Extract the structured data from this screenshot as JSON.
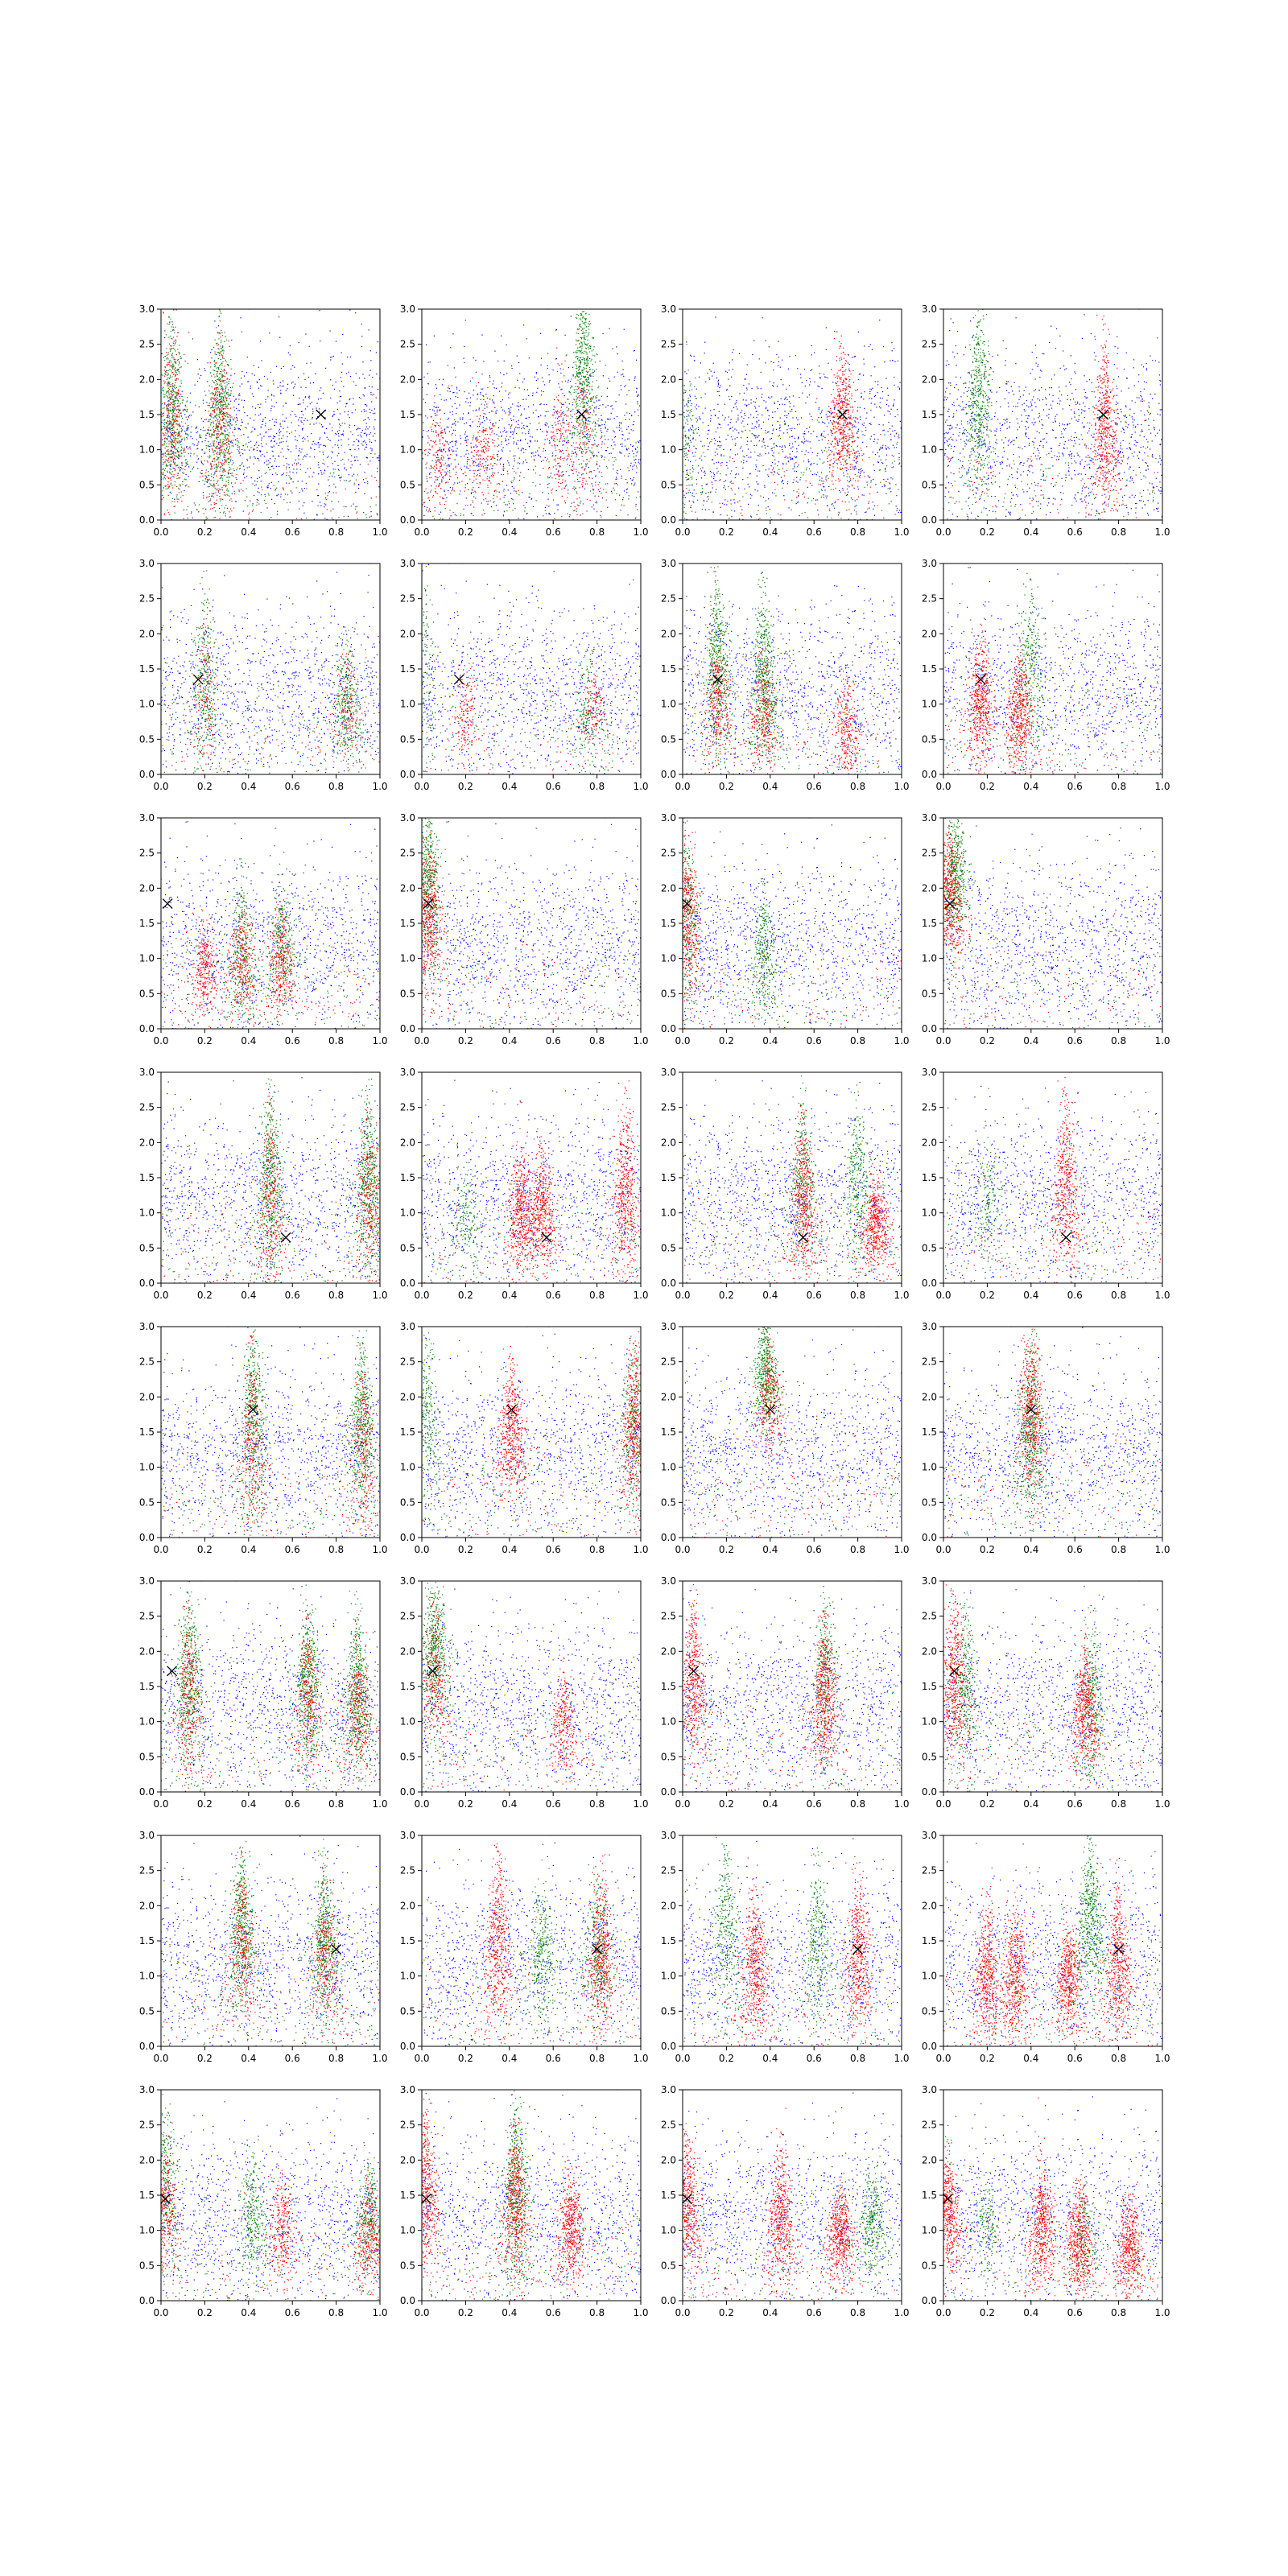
{
  "figure": {
    "rows": 8,
    "cols": 4
  },
  "colors": {
    "primary": "#0000ff",
    "secondary": "#008000",
    "highlight": "#ff0000",
    "marker": "#000000"
  },
  "axes_defaults": {
    "xlim": [
      0,
      1
    ],
    "ylim": [
      0,
      3
    ],
    "xticks": [
      "0.0",
      "0.2",
      "0.4",
      "0.6",
      "0.8",
      "1.0"
    ],
    "yticks": [
      "0.0",
      "0.5",
      "1.0",
      "1.5",
      "2.0",
      "2.5",
      "3.0"
    ],
    "grid": false
  },
  "chart_data": [
    {
      "row": 1,
      "col": 1,
      "type": "scatter",
      "marker": [
        0.73,
        1.5
      ],
      "green": [
        [
          0.05,
          1.5,
          2.6
        ],
        [
          0.27,
          1.4,
          2.5
        ]
      ],
      "red": [
        [
          0.05,
          1.3,
          2.6
        ],
        [
          0.27,
          1.2,
          2.4
        ]
      ],
      "green_level": "high",
      "red_level": "mid"
    },
    {
      "row": 1,
      "col": 2,
      "type": "scatter",
      "marker": [
        0.73,
        1.5
      ],
      "green": [
        [
          0.74,
          2.0,
          3.0
        ]
      ],
      "red": [
        [
          0.07,
          0.9,
          1.6
        ],
        [
          0.29,
          0.9,
          1.5
        ],
        [
          0.63,
          1.1,
          2.0
        ],
        [
          0.74,
          1.1,
          2.2
        ]
      ],
      "green_level": "high",
      "red_level": "low"
    },
    {
      "row": 1,
      "col": 3,
      "type": "scatter",
      "marker": [
        0.73,
        1.5
      ],
      "green": [
        [
          0.02,
          1.0,
          2.0
        ]
      ],
      "red": [
        [
          0.73,
          1.4,
          2.3
        ]
      ],
      "green_level": "low",
      "red_level": "high"
    },
    {
      "row": 1,
      "col": 4,
      "type": "scatter",
      "marker": [
        0.73,
        1.5
      ],
      "green": [
        [
          0.16,
          1.6,
          2.8
        ]
      ],
      "red": [
        [
          0.74,
          1.2,
          2.3
        ]
      ],
      "green_level": "high",
      "red_level": "high"
    },
    {
      "row": 2,
      "col": 1,
      "type": "scatter",
      "marker": [
        0.17,
        1.35
      ],
      "green": [
        [
          0.2,
          1.2,
          2.4
        ],
        [
          0.85,
          1.0,
          1.8
        ]
      ],
      "red": [
        [
          0.2,
          1.0,
          2.0
        ],
        [
          0.85,
          0.9,
          1.6
        ]
      ],
      "green_level": "mid",
      "red_level": "low"
    },
    {
      "row": 2,
      "col": 2,
      "type": "scatter",
      "marker": [
        0.17,
        1.35
      ],
      "green": [
        [
          0.01,
          1.4,
          2.8
        ],
        [
          0.75,
          0.8,
          1.5
        ]
      ],
      "red": [
        [
          0.2,
          0.8,
          1.5
        ],
        [
          0.78,
          0.9,
          1.5
        ]
      ],
      "green_level": "low",
      "red_level": "low"
    },
    {
      "row": 2,
      "col": 3,
      "type": "scatter",
      "marker": [
        0.16,
        1.35
      ],
      "green": [
        [
          0.16,
          1.5,
          2.6
        ],
        [
          0.37,
          1.3,
          2.4
        ]
      ],
      "red": [
        [
          0.16,
          1.0,
          1.8
        ],
        [
          0.37,
          0.8,
          1.5
        ],
        [
          0.75,
          0.6,
          1.3
        ]
      ],
      "green_level": "high",
      "red_level": "mid"
    },
    {
      "row": 2,
      "col": 4,
      "type": "scatter",
      "marker": [
        0.17,
        1.35
      ],
      "green": [
        [
          0.4,
          1.4,
          2.6
        ]
      ],
      "red": [
        [
          0.17,
          1.0,
          1.8
        ],
        [
          0.35,
          0.8,
          1.6
        ]
      ],
      "green_level": "mid",
      "red_level": "high"
    },
    {
      "row": 3,
      "col": 1,
      "type": "scatter",
      "marker": [
        0.03,
        1.78
      ],
      "green": [
        [
          0.37,
          1.0,
          2.0
        ],
        [
          0.55,
          1.2,
          2.0
        ]
      ],
      "red": [
        [
          0.2,
          0.8,
          1.4
        ],
        [
          0.37,
          0.9,
          1.6
        ],
        [
          0.55,
          0.9,
          1.6
        ]
      ],
      "green_level": "mid",
      "red_level": "mid"
    },
    {
      "row": 3,
      "col": 2,
      "type": "scatter",
      "marker": [
        0.03,
        1.78
      ],
      "green": [
        [
          0.03,
          2.0,
          3.0
        ]
      ],
      "red": [
        [
          0.03,
          1.5,
          2.5
        ]
      ],
      "green_level": "high",
      "red_level": "high"
    },
    {
      "row": 3,
      "col": 3,
      "type": "scatter",
      "marker": [
        0.02,
        1.78
      ],
      "green": [
        [
          0.02,
          1.5,
          2.6
        ],
        [
          0.37,
          1.0,
          1.8
        ]
      ],
      "red": [
        [
          0.02,
          1.5,
          2.5
        ]
      ],
      "green_level": "mid",
      "red_level": "high"
    },
    {
      "row": 3,
      "col": 4,
      "type": "scatter",
      "marker": [
        0.03,
        1.78
      ],
      "green": [
        [
          0.05,
          2.2,
          3.0
        ]
      ],
      "red": [
        [
          0.03,
          1.8,
          2.6
        ]
      ],
      "green_level": "high",
      "red_level": "high"
    },
    {
      "row": 4,
      "col": 1,
      "type": "scatter",
      "marker": [
        0.57,
        0.65
      ],
      "green": [
        [
          0.5,
          1.3,
          2.6
        ],
        [
          0.95,
          1.3,
          2.4
        ]
      ],
      "red": [
        [
          0.5,
          1.1,
          2.2
        ],
        [
          0.95,
          1.1,
          2.2
        ]
      ],
      "green_level": "high",
      "red_level": "mid"
    },
    {
      "row": 4,
      "col": 2,
      "type": "scatter",
      "marker": [
        0.57,
        0.65
      ],
      "green": [
        [
          0.2,
          0.9,
          1.6
        ]
      ],
      "red": [
        [
          0.45,
          1.0,
          1.8
        ],
        [
          0.55,
          1.0,
          1.8
        ],
        [
          0.93,
          1.2,
          2.3
        ]
      ],
      "green_level": "low",
      "red_level": "high"
    },
    {
      "row": 4,
      "col": 3,
      "type": "scatter",
      "marker": [
        0.55,
        0.65
      ],
      "green": [
        [
          0.55,
          1.4,
          2.4
        ],
        [
          0.8,
          1.4,
          2.4
        ]
      ],
      "red": [
        [
          0.55,
          1.1,
          2.1
        ],
        [
          0.88,
          0.8,
          1.4
        ]
      ],
      "green_level": "mid",
      "red_level": "high"
    },
    {
      "row": 4,
      "col": 4,
      "type": "scatter",
      "marker": [
        0.56,
        0.65
      ],
      "green": [
        [
          0.2,
          1.2,
          2.0
        ]
      ],
      "red": [
        [
          0.56,
          1.3,
          2.5
        ]
      ],
      "green_level": "low",
      "red_level": "high"
    },
    {
      "row": 5,
      "col": 1,
      "type": "scatter",
      "marker": [
        0.42,
        1.82
      ],
      "green": [
        [
          0.42,
          1.6,
          2.9
        ],
        [
          0.92,
          1.5,
          2.6
        ]
      ],
      "red": [
        [
          0.42,
          1.3,
          2.4
        ],
        [
          0.92,
          1.2,
          2.4
        ]
      ],
      "green_level": "high",
      "red_level": "mid"
    },
    {
      "row": 5,
      "col": 2,
      "type": "scatter",
      "marker": [
        0.41,
        1.82
      ],
      "green": [
        [
          0.02,
          1.7,
          2.9
        ],
        [
          0.97,
          1.6,
          2.6
        ]
      ],
      "red": [
        [
          0.41,
          1.5,
          2.4
        ],
        [
          0.97,
          1.5,
          2.6
        ]
      ],
      "green_level": "mid",
      "red_level": "high"
    },
    {
      "row": 5,
      "col": 3,
      "type": "scatter",
      "marker": [
        0.4,
        1.82
      ],
      "green": [
        [
          0.38,
          2.3,
          3.0
        ]
      ],
      "red": [
        [
          0.4,
          1.9,
          2.6
        ]
      ],
      "green_level": "high",
      "red_level": "mid"
    },
    {
      "row": 5,
      "col": 4,
      "type": "scatter",
      "marker": [
        0.4,
        1.82
      ],
      "green": [
        [
          0.4,
          1.4,
          2.5
        ]
      ],
      "red": [
        [
          0.4,
          1.8,
          2.8
        ]
      ],
      "green_level": "high",
      "red_level": "high"
    },
    {
      "row": 6,
      "col": 1,
      "type": "scatter",
      "marker": [
        0.05,
        1.72
      ],
      "green": [
        [
          0.13,
          1.5,
          2.6
        ],
        [
          0.67,
          1.5,
          2.5
        ],
        [
          0.9,
          1.3,
          2.3
        ]
      ],
      "red": [
        [
          0.13,
          1.3,
          2.3
        ],
        [
          0.67,
          1.3,
          2.2
        ],
        [
          0.9,
          1.1,
          2.0
        ]
      ],
      "green_level": "high",
      "red_level": "mid"
    },
    {
      "row": 6,
      "col": 2,
      "type": "scatter",
      "marker": [
        0.05,
        1.72
      ],
      "green": [
        [
          0.06,
          2.0,
          2.9
        ]
      ],
      "red": [
        [
          0.06,
          1.6,
          2.5
        ],
        [
          0.65,
          0.9,
          1.6
        ]
      ],
      "green_level": "high",
      "red_level": "mid"
    },
    {
      "row": 6,
      "col": 3,
      "type": "scatter",
      "marker": [
        0.05,
        1.72
      ],
      "green": [
        [
          0.65,
          1.6,
          2.6
        ]
      ],
      "red": [
        [
          0.05,
          1.5,
          2.5
        ],
        [
          0.65,
          1.3,
          2.2
        ]
      ],
      "green_level": "mid",
      "red_level": "high"
    },
    {
      "row": 6,
      "col": 4,
      "type": "scatter",
      "marker": [
        0.05,
        1.72
      ],
      "green": [
        [
          0.1,
          1.4,
          2.5
        ],
        [
          0.68,
          1.3,
          2.4
        ]
      ],
      "red": [
        [
          0.05,
          1.5,
          2.6
        ],
        [
          0.65,
          1.1,
          1.9
        ]
      ],
      "green_level": "mid",
      "red_level": "high"
    },
    {
      "row": 7,
      "col": 1,
      "type": "scatter",
      "marker": [
        0.8,
        1.38
      ],
      "green": [
        [
          0.37,
          1.6,
          2.6
        ],
        [
          0.75,
          1.4,
          2.4
        ]
      ],
      "red": [
        [
          0.37,
          1.4,
          2.4
        ],
        [
          0.75,
          1.2,
          2.1
        ]
      ],
      "green_level": "high",
      "red_level": "mid"
    },
    {
      "row": 7,
      "col": 2,
      "type": "scatter",
      "marker": [
        0.8,
        1.38
      ],
      "green": [
        [
          0.55,
          1.3,
          2.2
        ],
        [
          0.8,
          1.4,
          2.3
        ]
      ],
      "red": [
        [
          0.35,
          1.4,
          2.6
        ],
        [
          0.82,
          1.2,
          2.2
        ]
      ],
      "green_level": "mid",
      "red_level": "high"
    },
    {
      "row": 7,
      "col": 3,
      "type": "scatter",
      "marker": [
        0.8,
        1.38
      ],
      "green": [
        [
          0.2,
          1.6,
          2.7
        ],
        [
          0.62,
          1.4,
          2.4
        ]
      ],
      "red": [
        [
          0.33,
          1.1,
          2.0
        ],
        [
          0.8,
          1.2,
          2.2
        ]
      ],
      "green_level": "mid",
      "red_level": "high"
    },
    {
      "row": 7,
      "col": 4,
      "type": "scatter",
      "marker": [
        0.8,
        1.38
      ],
      "green": [
        [
          0.67,
          1.8,
          2.8
        ]
      ],
      "red": [
        [
          0.2,
          0.9,
          1.8
        ],
        [
          0.33,
          0.9,
          1.8
        ],
        [
          0.57,
          0.9,
          1.6
        ],
        [
          0.8,
          1.1,
          2.1
        ]
      ],
      "green_level": "high",
      "red_level": "high"
    },
    {
      "row": 8,
      "col": 1,
      "type": "scatter",
      "marker": [
        0.02,
        1.45
      ],
      "green": [
        [
          0.02,
          1.6,
          2.6
        ],
        [
          0.42,
          1.2,
          2.0
        ],
        [
          0.95,
          1.1,
          1.8
        ]
      ],
      "red": [
        [
          0.02,
          1.3,
          2.2
        ],
        [
          0.55,
          1.0,
          1.7
        ],
        [
          0.95,
          0.9,
          1.6
        ]
      ],
      "green_level": "mid",
      "red_level": "mid"
    },
    {
      "row": 8,
      "col": 2,
      "type": "scatter",
      "marker": [
        0.02,
        1.45
      ],
      "green": [
        [
          0.43,
          1.5,
          2.7
        ]
      ],
      "red": [
        [
          0.02,
          1.5,
          2.5
        ],
        [
          0.43,
          1.3,
          2.2
        ],
        [
          0.68,
          1.0,
          1.7
        ]
      ],
      "green_level": "high",
      "red_level": "high"
    },
    {
      "row": 8,
      "col": 3,
      "type": "scatter",
      "marker": [
        0.02,
        1.45
      ],
      "green": [
        [
          0.87,
          1.1,
          1.8
        ]
      ],
      "red": [
        [
          0.02,
          1.3,
          2.2
        ],
        [
          0.45,
          1.1,
          2.0
        ],
        [
          0.72,
          0.9,
          1.5
        ]
      ],
      "green_level": "mid",
      "red_level": "high"
    },
    {
      "row": 8,
      "col": 4,
      "type": "scatter",
      "marker": [
        0.02,
        1.45
      ],
      "green": [
        [
          0.2,
          1.0,
          1.6
        ],
        [
          0.65,
          0.9,
          1.5
        ]
      ],
      "red": [
        [
          0.02,
          1.2,
          2.0
        ],
        [
          0.45,
          1.0,
          1.8
        ],
        [
          0.62,
          0.8,
          1.5
        ],
        [
          0.85,
          0.7,
          1.4
        ]
      ],
      "green_level": "low",
      "red_level": "high"
    }
  ]
}
